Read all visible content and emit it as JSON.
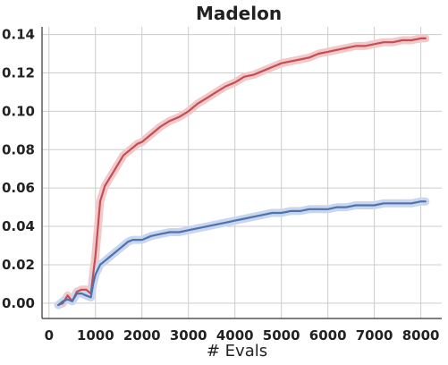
{
  "chart_data": {
    "type": "line",
    "title": "Madelon",
    "xlabel": "# Evals",
    "ylabel": "",
    "xlim": [
      -150,
      8450
    ],
    "ylim": [
      -0.008,
      0.144
    ],
    "xticks": [
      0,
      1000,
      2000,
      3000,
      4000,
      5000,
      6000,
      7000,
      8000
    ],
    "xtick_labels": [
      "0",
      "1000",
      "2000",
      "3000",
      "4000",
      "5000",
      "6000",
      "7000",
      "8000"
    ],
    "yticks": [
      0.0,
      0.02,
      0.04,
      0.06,
      0.08,
      0.1,
      0.12,
      0.14
    ],
    "ytick_labels": [
      "0.00",
      "0.02",
      "0.04",
      "0.06",
      "0.08",
      "0.10",
      "0.12",
      "0.14"
    ],
    "grid": true,
    "legend": "none",
    "series": [
      {
        "color": "#c44e52",
        "band_color": "#f2c9cb",
        "x": [
          200,
          300,
          400,
          500,
          600,
          700,
          800,
          900,
          950,
          1000,
          1100,
          1200,
          1300,
          1400,
          1500,
          1600,
          1700,
          1800,
          1900,
          2000,
          2200,
          2400,
          2600,
          2800,
          3000,
          3200,
          3400,
          3600,
          3800,
          4000,
          4200,
          4400,
          4600,
          4800,
          5000,
          5200,
          5400,
          5600,
          5800,
          6000,
          6200,
          6400,
          6600,
          6800,
          7000,
          7200,
          7400,
          7600,
          7800,
          8000,
          8100
        ],
        "y": [
          -0.001,
          0.0,
          0.004,
          0.001,
          0.006,
          0.007,
          0.007,
          0.005,
          0.015,
          0.025,
          0.053,
          0.061,
          0.065,
          0.069,
          0.073,
          0.077,
          0.079,
          0.081,
          0.083,
          0.084,
          0.088,
          0.092,
          0.095,
          0.097,
          0.1,
          0.104,
          0.107,
          0.11,
          0.113,
          0.115,
          0.118,
          0.119,
          0.121,
          0.123,
          0.125,
          0.126,
          0.127,
          0.128,
          0.13,
          0.131,
          0.132,
          0.133,
          0.134,
          0.134,
          0.135,
          0.136,
          0.136,
          0.137,
          0.137,
          0.138,
          0.138
        ]
      },
      {
        "color": "#4c72b0",
        "band_color": "#c9d6ee",
        "x": [
          200,
          300,
          400,
          500,
          600,
          700,
          800,
          900,
          950,
          1000,
          1100,
          1200,
          1300,
          1400,
          1500,
          1600,
          1700,
          1800,
          1900,
          2000,
          2200,
          2400,
          2600,
          2800,
          3000,
          3200,
          3400,
          3600,
          3800,
          4000,
          4200,
          4400,
          4600,
          4800,
          5000,
          5200,
          5400,
          5600,
          5800,
          6000,
          6200,
          6400,
          6600,
          6800,
          7000,
          7200,
          7400,
          7600,
          7800,
          8000,
          8100
        ],
        "y": [
          -0.001,
          0.001,
          0.002,
          0.001,
          0.005,
          0.005,
          0.004,
          0.003,
          0.01,
          0.015,
          0.02,
          0.022,
          0.024,
          0.026,
          0.028,
          0.03,
          0.032,
          0.033,
          0.033,
          0.033,
          0.035,
          0.036,
          0.037,
          0.037,
          0.038,
          0.039,
          0.04,
          0.041,
          0.042,
          0.043,
          0.044,
          0.045,
          0.046,
          0.047,
          0.047,
          0.048,
          0.048,
          0.049,
          0.049,
          0.049,
          0.05,
          0.05,
          0.051,
          0.051,
          0.051,
          0.052,
          0.052,
          0.052,
          0.052,
          0.053,
          0.053
        ]
      }
    ]
  }
}
